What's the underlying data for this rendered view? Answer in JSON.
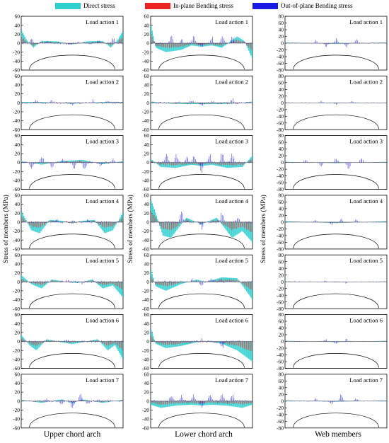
{
  "legend": {
    "items": [
      {
        "label": "Direct stress",
        "color": "#2ecfcf"
      },
      {
        "label": "In-plane Bending stress",
        "color": "#ee2222"
      },
      {
        "label": "Out-of-plane Bending stress",
        "color": "#1a1ae6"
      }
    ]
  },
  "columns": [
    {
      "title": "Upper chord arch",
      "ylim": [
        -60,
        60
      ],
      "yticks": [
        -60,
        -40,
        -20,
        0,
        20,
        40,
        60
      ]
    },
    {
      "title": "Lower chord arch",
      "ylim": [
        -60,
        60
      ],
      "yticks": [
        -60,
        -40,
        -20,
        0,
        20,
        40,
        60
      ]
    },
    {
      "title": "Web members",
      "ylim": [
        -80,
        80
      ],
      "yticks": [
        -80,
        -60,
        -40,
        -20,
        0,
        20,
        40,
        60,
        80
      ]
    }
  ],
  "ylabel": "Stress of members (MPa)",
  "load_actions": [
    "Load action 1",
    "Load action 2",
    "Load action 3",
    "Load action 4",
    "Load action 5",
    "Load action 6",
    "Load action 7"
  ],
  "chart_data": {
    "type": "bar",
    "layout": "small-multiples 7 rows x 3 columns",
    "series": [
      {
        "name": "Direct stress",
        "color": "#2ecfcf"
      },
      {
        "name": "In-plane Bending stress",
        "color": "#ee2222"
      },
      {
        "name": "Out-of-plane Bending stress",
        "color": "#1a1ae6"
      }
    ],
    "panels": [
      [
        {
          "load": "Load action 1",
          "profile": [
            [
              0,
              30
            ],
            [
              0.05,
              8
            ],
            [
              0.12,
              -10
            ],
            [
              0.2,
              5
            ],
            [
              0.35,
              4
            ],
            [
              0.5,
              -3
            ],
            [
              0.65,
              4
            ],
            [
              0.8,
              5
            ],
            [
              0.88,
              -10
            ],
            [
              0.95,
              8
            ],
            [
              1,
              28
            ]
          ],
          "spikes": [
            [
              0.1,
              12
            ],
            [
              0.25,
              6
            ],
            [
              0.45,
              -5
            ],
            [
              0.55,
              5
            ],
            [
              0.75,
              6
            ],
            [
              0.9,
              12
            ]
          ]
        },
        {
          "load": "Load action 2",
          "profile": [
            [
              0,
              2
            ],
            [
              0.2,
              2
            ],
            [
              0.5,
              -2
            ],
            [
              0.8,
              2
            ],
            [
              1,
              2
            ]
          ],
          "spikes": [
            [
              0.15,
              6
            ],
            [
              0.3,
              5
            ],
            [
              0.5,
              -5
            ],
            [
              0.7,
              5
            ],
            [
              0.85,
              6
            ]
          ]
        },
        {
          "load": "Load action 3",
          "profile": [
            [
              0,
              3
            ],
            [
              0.2,
              -5
            ],
            [
              0.4,
              3
            ],
            [
              0.6,
              6
            ],
            [
              0.8,
              -4
            ],
            [
              1,
              3
            ]
          ],
          "spikes": [
            [
              0.1,
              -15
            ],
            [
              0.2,
              12
            ],
            [
              0.3,
              -12
            ],
            [
              0.4,
              10
            ],
            [
              0.52,
              -12
            ],
            [
              0.62,
              -15
            ],
            [
              0.78,
              -10
            ],
            [
              0.9,
              8
            ]
          ]
        },
        {
          "load": "Load action 4",
          "profile": [
            [
              0,
              25
            ],
            [
              0.1,
              -18
            ],
            [
              0.18,
              -25
            ],
            [
              0.28,
              5
            ],
            [
              0.4,
              3
            ],
            [
              0.5,
              -3
            ],
            [
              0.6,
              3
            ],
            [
              0.72,
              5
            ],
            [
              0.82,
              -25
            ],
            [
              0.9,
              -18
            ],
            [
              1,
              22
            ]
          ],
          "spikes": [
            [
              0.35,
              6
            ],
            [
              0.5,
              8
            ],
            [
              0.65,
              6
            ]
          ]
        },
        {
          "load": "Load action 5",
          "profile": [
            [
              0,
              15
            ],
            [
              0.1,
              -5
            ],
            [
              0.2,
              -15
            ],
            [
              0.3,
              5
            ],
            [
              0.45,
              0
            ],
            [
              0.55,
              -3
            ],
            [
              0.7,
              5
            ],
            [
              0.8,
              -15
            ],
            [
              0.9,
              -8
            ],
            [
              1,
              -35
            ]
          ],
          "spikes": [
            [
              0.45,
              4
            ],
            [
              0.6,
              -5
            ]
          ]
        },
        {
          "load": "Load action 6",
          "profile": [
            [
              0,
              15
            ],
            [
              0.08,
              -8
            ],
            [
              0.15,
              -20
            ],
            [
              0.25,
              5
            ],
            [
              0.4,
              -2
            ],
            [
              0.5,
              -6
            ],
            [
              0.6,
              -2
            ],
            [
              0.75,
              5
            ],
            [
              0.85,
              -20
            ],
            [
              0.92,
              -8
            ],
            [
              1,
              -40
            ]
          ],
          "spikes": [
            [
              0.45,
              5
            ],
            [
              0.55,
              -5
            ]
          ]
        },
        {
          "load": "Load action 7",
          "profile": [
            [
              0,
              3
            ],
            [
              0.2,
              -4
            ],
            [
              0.4,
              4
            ],
            [
              0.5,
              -5
            ],
            [
              0.6,
              4
            ],
            [
              0.8,
              -4
            ],
            [
              1,
              3
            ]
          ],
          "spikes": [
            [
              0.25,
              6
            ],
            [
              0.4,
              -8
            ],
            [
              0.5,
              -15
            ],
            [
              0.58,
              12
            ],
            [
              0.65,
              -6
            ],
            [
              0.75,
              5
            ]
          ]
        }
      ],
      [
        {
          "load": "Load action 1",
          "profile": [
            [
              0,
              45
            ],
            [
              0.05,
              -10
            ],
            [
              0.15,
              -20
            ],
            [
              0.3,
              -15
            ],
            [
              0.4,
              -5
            ],
            [
              0.5,
              -8
            ],
            [
              0.6,
              -5
            ],
            [
              0.7,
              -10
            ],
            [
              0.85,
              15
            ],
            [
              0.92,
              5
            ],
            [
              1,
              -35
            ]
          ],
          "spikes": [
            [
              0.2,
              15
            ],
            [
              0.3,
              10
            ],
            [
              0.42,
              15
            ],
            [
              0.5,
              -10
            ],
            [
              0.6,
              12
            ],
            [
              0.7,
              15
            ],
            [
              0.8,
              15
            ]
          ]
        },
        {
          "load": "Load action 2",
          "profile": [
            [
              0,
              3
            ],
            [
              0.2,
              -2
            ],
            [
              0.5,
              -3
            ],
            [
              0.8,
              -2
            ],
            [
              1,
              3
            ]
          ],
          "spikes": [
            [
              0.25,
              5
            ],
            [
              0.4,
              5
            ],
            [
              0.5,
              -5
            ],
            [
              0.6,
              5
            ],
            [
              0.8,
              8
            ]
          ]
        },
        {
          "load": "Load action 3",
          "profile": [
            [
              0,
              8
            ],
            [
              0.1,
              -10
            ],
            [
              0.25,
              -12
            ],
            [
              0.4,
              -5
            ],
            [
              0.5,
              -8
            ],
            [
              0.6,
              -5
            ],
            [
              0.75,
              -12
            ],
            [
              0.9,
              -10
            ],
            [
              1,
              15
            ]
          ],
          "spikes": [
            [
              0.15,
              18
            ],
            [
              0.25,
              15
            ],
            [
              0.35,
              15
            ],
            [
              0.42,
              15
            ],
            [
              0.5,
              -20
            ],
            [
              0.58,
              15
            ],
            [
              0.7,
              25
            ],
            [
              0.8,
              18
            ]
          ]
        },
        {
          "load": "Load action 4",
          "profile": [
            [
              0,
              52
            ],
            [
              0.05,
              20
            ],
            [
              0.12,
              -30
            ],
            [
              0.2,
              -35
            ],
            [
              0.35,
              10
            ],
            [
              0.5,
              -5
            ],
            [
              0.65,
              10
            ],
            [
              0.8,
              -35
            ],
            [
              0.9,
              -20
            ],
            [
              1,
              -45
            ]
          ],
          "spikes": [
            [
              0.3,
              20
            ],
            [
              0.5,
              -12
            ],
            [
              0.7,
              20
            ],
            [
              0.85,
              10
            ]
          ]
        },
        {
          "load": "Load action 5",
          "profile": [
            [
              0,
              30
            ],
            [
              0.05,
              -10
            ],
            [
              0.15,
              -20
            ],
            [
              0.3,
              -5
            ],
            [
              0.45,
              5
            ],
            [
              0.55,
              0
            ],
            [
              0.7,
              10
            ],
            [
              0.85,
              8
            ],
            [
              1,
              -40
            ]
          ],
          "spikes": [
            [
              0.4,
              5
            ],
            [
              0.5,
              -8
            ],
            [
              0.6,
              8
            ]
          ]
        },
        {
          "load": "Load action 6",
          "profile": [
            [
              0,
              30
            ],
            [
              0.05,
              -5
            ],
            [
              0.15,
              -15
            ],
            [
              0.3,
              -10
            ],
            [
              0.45,
              -2
            ],
            [
              0.55,
              0
            ],
            [
              0.7,
              -5
            ],
            [
              0.85,
              -20
            ],
            [
              1,
              -45
            ]
          ],
          "spikes": [
            [
              0.5,
              5
            ],
            [
              0.7,
              -15
            ]
          ]
        },
        {
          "load": "Load action 7",
          "profile": [
            [
              0,
              -8
            ],
            [
              0.1,
              -15
            ],
            [
              0.25,
              -10
            ],
            [
              0.4,
              -8
            ],
            [
              0.5,
              -10
            ],
            [
              0.6,
              -8
            ],
            [
              0.75,
              -10
            ],
            [
              0.9,
              -15
            ],
            [
              1,
              -8
            ]
          ],
          "spikes": [
            [
              0.2,
              12
            ],
            [
              0.3,
              15
            ],
            [
              0.42,
              12
            ],
            [
              0.5,
              -15
            ],
            [
              0.58,
              12
            ],
            [
              0.7,
              18
            ],
            [
              0.8,
              12
            ]
          ]
        }
      ],
      [
        {
          "load": "Load action 1",
          "profile": [
            [
              0,
              2
            ],
            [
              0.5,
              -2
            ],
            [
              1,
              2
            ]
          ],
          "spikes": [
            [
              0.3,
              8
            ],
            [
              0.4,
              -10
            ],
            [
              0.5,
              12
            ],
            [
              0.6,
              -10
            ],
            [
              0.7,
              10
            ]
          ]
        },
        {
          "load": "Load action 2",
          "profile": [
            [
              0,
              1
            ],
            [
              0.5,
              -1
            ],
            [
              1,
              1
            ]
          ],
          "spikes": [
            [
              0.35,
              5
            ],
            [
              0.5,
              -6
            ],
            [
              0.65,
              5
            ]
          ]
        },
        {
          "load": "Load action 3",
          "profile": [
            [
              0,
              2
            ],
            [
              0.5,
              -2
            ],
            [
              1,
              2
            ]
          ],
          "spikes": [
            [
              0.2,
              8
            ],
            [
              0.35,
              -10
            ],
            [
              0.5,
              12
            ],
            [
              0.62,
              -20
            ],
            [
              0.75,
              15
            ]
          ]
        },
        {
          "load": "Load action 4",
          "profile": [
            [
              0,
              3
            ],
            [
              0.5,
              -3
            ],
            [
              1,
              3
            ]
          ],
          "spikes": [
            [
              0.3,
              6
            ],
            [
              0.45,
              -8
            ],
            [
              0.55,
              10
            ],
            [
              0.7,
              8
            ]
          ]
        },
        {
          "load": "Load action 5",
          "profile": [
            [
              0,
              1
            ],
            [
              0.5,
              -1
            ],
            [
              1,
              1
            ]
          ],
          "spikes": [
            [
              0.4,
              4
            ],
            [
              0.6,
              -4
            ]
          ]
        },
        {
          "load": "Load action 6",
          "profile": [
            [
              0,
              2
            ],
            [
              0.5,
              -2
            ],
            [
              1,
              2
            ]
          ],
          "spikes": [
            [
              0.4,
              6
            ],
            [
              0.5,
              -8
            ],
            [
              0.6,
              6
            ]
          ]
        },
        {
          "load": "Load action 7",
          "profile": [
            [
              0,
              2
            ],
            [
              0.5,
              -2
            ],
            [
              1,
              2
            ]
          ],
          "spikes": [
            [
              0.3,
              6
            ],
            [
              0.45,
              -10
            ],
            [
              0.55,
              20
            ],
            [
              0.7,
              8
            ]
          ]
        }
      ]
    ]
  }
}
